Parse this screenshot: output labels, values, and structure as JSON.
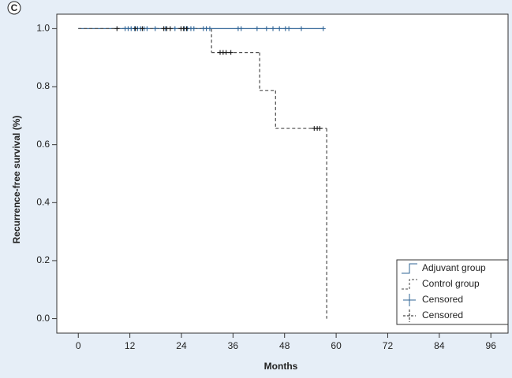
{
  "chart_data": {
    "type": "step",
    "panel_label": "C",
    "xlabel": "Months",
    "ylabel": "Recurrence-free survival (%)",
    "xlim": [
      -5,
      100
    ],
    "xticks": [
      0,
      12,
      24,
      36,
      48,
      60,
      72,
      84,
      96
    ],
    "ylim": [
      -0.05,
      1.05
    ],
    "yticks": [
      {
        "value": 0,
        "label": "0.0"
      },
      0.2,
      0.4,
      0.6,
      0.8,
      {
        "value": 1,
        "label": "1.0"
      }
    ],
    "legend": "lower right",
    "series": [
      {
        "name": "Adjuvant group",
        "kind": "line",
        "dash": false,
        "color": "#2f6496",
        "x": [
          0,
          57
        ],
        "values": [
          1,
          1
        ]
      },
      {
        "name": "Control group",
        "kind": "line",
        "dash": true,
        "color": "#4a4a4a",
        "x": [
          0,
          31,
          42.2,
          45.9,
          57.8
        ],
        "values": [
          1,
          0.918,
          0.787,
          0.656,
          0
        ]
      },
      {
        "name": "Censored",
        "kind": "censor",
        "dash": false,
        "color": "#2f6496",
        "x": [
          10.9,
          11.6,
          12.3,
          13.1,
          13.8,
          14.5,
          15.3,
          16,
          17.9,
          20.3,
          22.5,
          24.7,
          25.4,
          26.2,
          26.9,
          29.1,
          29.8,
          30.6,
          37.2,
          37.9,
          41.6,
          43.8,
          45.3,
          46.8,
          48.2,
          49,
          51.9,
          57
        ],
        "values": [
          1,
          1,
          1,
          1,
          1,
          1,
          1,
          1,
          1,
          1,
          1,
          1,
          1,
          1,
          1,
          1,
          1,
          1,
          1,
          1,
          1,
          1,
          1,
          1,
          1,
          1,
          1,
          1
        ]
      },
      {
        "name": "Censored",
        "kind": "censor",
        "dash": true,
        "color": "#1a1a1a",
        "x": [
          9,
          13.3,
          14.9,
          19.9,
          20.6,
          21.4,
          23.9,
          24.5,
          25.2,
          33,
          33.7,
          34.4,
          35.5,
          54.9,
          55.6,
          56.2
        ],
        "values": [
          1,
          1,
          1,
          1,
          1,
          1,
          1,
          1,
          1,
          0.918,
          0.918,
          0.918,
          0.918,
          0.656,
          0.656,
          0.656
        ]
      }
    ]
  }
}
